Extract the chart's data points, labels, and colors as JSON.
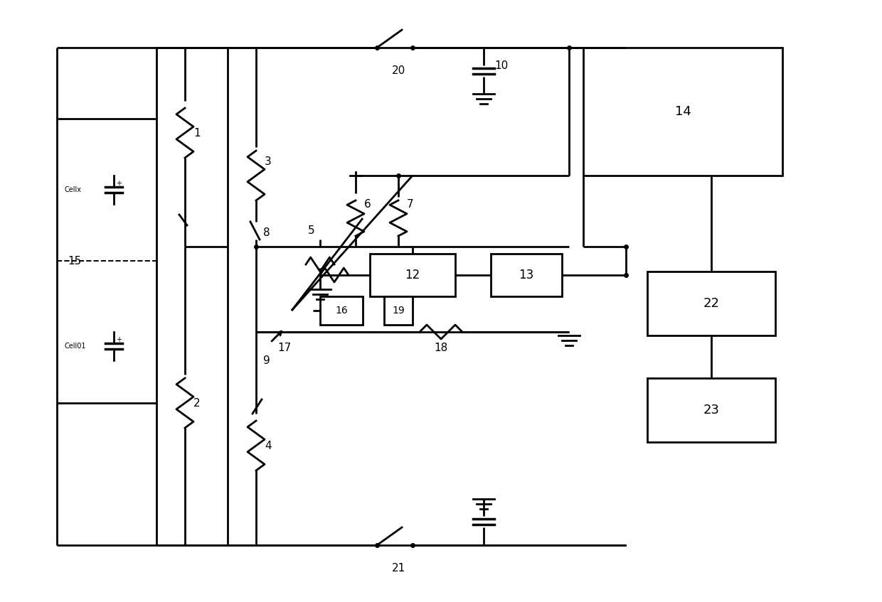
{
  "background_color": "#ffffff",
  "line_color": "#000000",
  "line_width": 2.0,
  "fig_width": 12.4,
  "fig_height": 8.47
}
